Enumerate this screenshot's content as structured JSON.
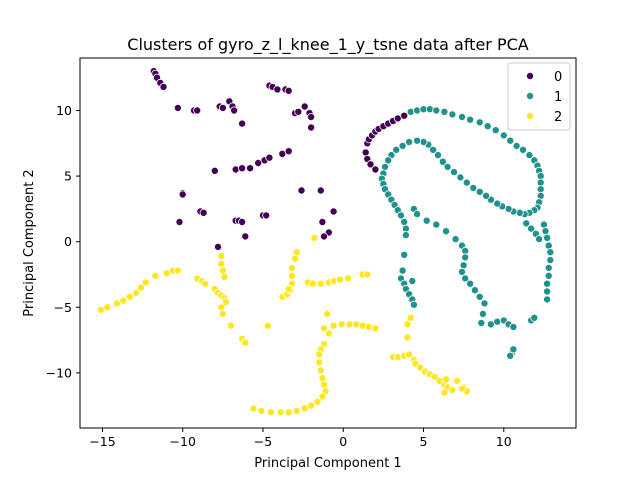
{
  "chart_data": {
    "type": "scatter",
    "title": "Clusters of gyro_z_l_knee_1_y_tsne data after PCA",
    "xlabel": "Principal Component 1",
    "ylabel": "Principal Component 2",
    "xlim": [
      -16.4,
      14.5
    ],
    "ylim": [
      -14.2,
      14.0
    ],
    "xticks": [
      -15,
      -10,
      -5,
      0,
      5,
      10
    ],
    "yticks": [
      -10,
      -5,
      0,
      5,
      10
    ],
    "legend_position": "top-right",
    "grid": false,
    "series": [
      {
        "name": "0",
        "color": "#440154",
        "points": [
          [
            -11.8,
            13.0
          ],
          [
            -11.7,
            12.8
          ],
          [
            -11.6,
            12.5
          ],
          [
            -11.4,
            12.1
          ],
          [
            -11.2,
            11.8
          ],
          [
            -10.3,
            10.2
          ],
          [
            -9.3,
            10.0
          ],
          [
            -9.1,
            10.0
          ],
          [
            -7.7,
            10.3
          ],
          [
            -7.5,
            10.2
          ],
          [
            -7.1,
            10.7
          ],
          [
            -6.9,
            10.3
          ],
          [
            -6.8,
            10.0
          ],
          [
            -6.3,
            9.0
          ],
          [
            -4.6,
            11.9
          ],
          [
            -4.4,
            11.8
          ],
          [
            -4.1,
            11.6
          ],
          [
            -3.6,
            11.6
          ],
          [
            -3.4,
            11.5
          ],
          [
            -3.0,
            9.8
          ],
          [
            -2.8,
            9.9
          ],
          [
            -2.4,
            10.3
          ],
          [
            -2.1,
            9.8
          ],
          [
            -2.0,
            9.5
          ],
          [
            -2.0,
            8.7
          ],
          [
            -8.0,
            5.4
          ],
          [
            -6.7,
            5.5
          ],
          [
            -6.3,
            5.6
          ],
          [
            -5.8,
            5.6
          ],
          [
            -5.3,
            6.0
          ],
          [
            -4.9,
            6.2
          ],
          [
            -4.6,
            6.4
          ],
          [
            -3.8,
            6.7
          ],
          [
            -3.4,
            6.9
          ],
          [
            -2.6,
            3.9
          ],
          [
            -1.4,
            3.9
          ],
          [
            -10.0,
            3.7
          ],
          [
            -10.0,
            3.6
          ],
          [
            -8.9,
            2.3
          ],
          [
            -8.7,
            2.2
          ],
          [
            -6.7,
            1.6
          ],
          [
            -6.5,
            1.6
          ],
          [
            -6.3,
            1.5
          ],
          [
            -5.0,
            2.0
          ],
          [
            -4.8,
            2.0
          ],
          [
            -10.2,
            1.5
          ],
          [
            -1.3,
            1.5
          ],
          [
            -0.6,
            2.3
          ],
          [
            -7.8,
            -0.4
          ],
          [
            -6.1,
            0.4
          ],
          [
            -0.9,
            0.7
          ],
          [
            -1.2,
            0.4
          ],
          [
            1.4,
            6.8
          ],
          [
            1.5,
            7.5
          ],
          [
            1.6,
            7.8
          ],
          [
            1.8,
            8.1
          ],
          [
            2.0,
            8.4
          ],
          [
            2.2,
            8.6
          ],
          [
            2.5,
            8.8
          ],
          [
            2.8,
            9.0
          ],
          [
            3.1,
            9.2
          ],
          [
            3.4,
            9.4
          ],
          [
            3.8,
            9.6
          ],
          [
            1.5,
            6.3
          ],
          [
            1.7,
            5.9
          ],
          [
            2.0,
            5.5
          ]
        ]
      },
      {
        "name": "1",
        "color": "#21918c",
        "points": [
          [
            4.2,
            9.9
          ],
          [
            4.6,
            10.0
          ],
          [
            5.0,
            10.1
          ],
          [
            5.4,
            10.1
          ],
          [
            5.8,
            10.0
          ],
          [
            6.3,
            9.9
          ],
          [
            6.8,
            9.7
          ],
          [
            7.4,
            9.5
          ],
          [
            7.9,
            9.3
          ],
          [
            8.5,
            9.1
          ],
          [
            9.0,
            8.8
          ],
          [
            9.5,
            8.5
          ],
          [
            10.0,
            8.1
          ],
          [
            10.4,
            7.7
          ],
          [
            10.8,
            7.3
          ],
          [
            11.2,
            7.0
          ],
          [
            11.6,
            6.6
          ],
          [
            11.9,
            6.2
          ],
          [
            12.1,
            5.8
          ],
          [
            12.2,
            5.4
          ],
          [
            12.3,
            5.0
          ],
          [
            12.3,
            4.5
          ],
          [
            12.3,
            4.0
          ],
          [
            12.3,
            3.5
          ],
          [
            12.2,
            3.0
          ],
          [
            12.1,
            2.6
          ],
          [
            11.9,
            2.4
          ],
          [
            11.6,
            2.2
          ],
          [
            11.3,
            2.1
          ],
          [
            11.0,
            2.2
          ],
          [
            10.6,
            2.3
          ],
          [
            10.3,
            2.5
          ],
          [
            9.9,
            2.7
          ],
          [
            9.6,
            2.9
          ],
          [
            9.2,
            3.2
          ],
          [
            8.9,
            3.5
          ],
          [
            8.5,
            3.8
          ],
          [
            8.1,
            4.1
          ],
          [
            7.7,
            4.5
          ],
          [
            7.3,
            4.9
          ],
          [
            6.9,
            5.3
          ],
          [
            6.5,
            5.7
          ],
          [
            6.2,
            6.1
          ],
          [
            5.9,
            6.6
          ],
          [
            5.6,
            7.0
          ],
          [
            5.3,
            7.4
          ],
          [
            5.0,
            7.6
          ],
          [
            4.6,
            7.7
          ],
          [
            4.1,
            7.6
          ],
          [
            3.7,
            7.3
          ],
          [
            3.3,
            7.0
          ],
          [
            3.0,
            6.6
          ],
          [
            2.8,
            6.2
          ],
          [
            2.6,
            5.7
          ],
          [
            2.5,
            5.2
          ],
          [
            2.4,
            4.8
          ],
          [
            2.5,
            4.4
          ],
          [
            2.6,
            4.0
          ],
          [
            2.8,
            3.6
          ],
          [
            3.0,
            3.2
          ],
          [
            3.2,
            2.8
          ],
          [
            3.4,
            2.4
          ],
          [
            3.6,
            2.0
          ],
          [
            3.8,
            1.5
          ],
          [
            3.9,
            1.0
          ],
          [
            3.9,
            0.5
          ],
          [
            3.8,
            -1.0
          ],
          [
            3.7,
            -2.2
          ],
          [
            3.6,
            -2.8
          ],
          [
            3.8,
            -3.2
          ],
          [
            3.9,
            -3.6
          ],
          [
            4.1,
            -4.0
          ],
          [
            4.3,
            -4.4
          ],
          [
            4.4,
            -4.8
          ],
          [
            4.3,
            -3.0
          ],
          [
            4.4,
            2.5
          ],
          [
            4.6,
            2.1
          ],
          [
            5.2,
            1.6
          ],
          [
            5.8,
            1.3
          ],
          [
            6.4,
            0.8
          ],
          [
            7.0,
            0.2
          ],
          [
            7.4,
            -0.3
          ],
          [
            7.6,
            -0.7
          ],
          [
            7.6,
            -1.2
          ],
          [
            7.5,
            -1.8
          ],
          [
            7.4,
            -2.3
          ],
          [
            7.6,
            -2.8
          ],
          [
            7.9,
            -3.2
          ],
          [
            8.2,
            -3.7
          ],
          [
            8.5,
            -4.2
          ],
          [
            8.8,
            -4.7
          ],
          [
            8.7,
            -5.5
          ],
          [
            8.6,
            -6.2
          ],
          [
            9.2,
            -6.3
          ],
          [
            9.6,
            -6.1
          ],
          [
            10.0,
            -6.0
          ],
          [
            10.3,
            -6.3
          ],
          [
            10.6,
            -6.5
          ],
          [
            11.7,
            -6.0
          ],
          [
            11.9,
            -5.8
          ],
          [
            12.5,
            1.3
          ],
          [
            12.6,
            0.8
          ],
          [
            12.7,
            0.3
          ],
          [
            12.8,
            -0.3
          ],
          [
            12.9,
            -0.8
          ],
          [
            12.9,
            -1.4
          ],
          [
            12.8,
            -2.0
          ],
          [
            12.8,
            -2.6
          ],
          [
            12.7,
            -3.2
          ],
          [
            12.7,
            -3.8
          ],
          [
            12.7,
            -4.4
          ],
          [
            11.4,
            1.4
          ],
          [
            11.7,
            1.0
          ],
          [
            12.0,
            0.6
          ],
          [
            12.2,
            0.2
          ],
          [
            10.5,
            -8.5
          ],
          [
            10.6,
            -8.2
          ],
          [
            10.4,
            -8.7
          ]
        ]
      },
      {
        "name": "2",
        "color": "#fde725",
        "points": [
          [
            -15.1,
            -5.2
          ],
          [
            -14.7,
            -5.0
          ],
          [
            -14.1,
            -4.7
          ],
          [
            -13.7,
            -4.5
          ],
          [
            -13.3,
            -4.2
          ],
          [
            -12.9,
            -3.9
          ],
          [
            -12.6,
            -3.5
          ],
          [
            -12.3,
            -3.1
          ],
          [
            -11.7,
            -2.6
          ],
          [
            -11.0,
            -2.4
          ],
          [
            -10.6,
            -2.2
          ],
          [
            -10.3,
            -2.2
          ],
          [
            -9.1,
            -2.8
          ],
          [
            -8.8,
            -3.0
          ],
          [
            -8.6,
            -3.2
          ],
          [
            -8.0,
            -3.6
          ],
          [
            -7.8,
            -3.9
          ],
          [
            -7.6,
            -4.1
          ],
          [
            -7.4,
            -4.3
          ],
          [
            -7.3,
            -4.6
          ],
          [
            -7.6,
            -1.1
          ],
          [
            -7.6,
            -1.7
          ],
          [
            -7.5,
            -2.2
          ],
          [
            -7.4,
            -2.7
          ],
          [
            -7.6,
            -5.0
          ],
          [
            -7.5,
            -5.5
          ],
          [
            -7.0,
            -6.4
          ],
          [
            -6.3,
            -7.4
          ],
          [
            -6.1,
            -7.7
          ],
          [
            -4.7,
            -6.4
          ],
          [
            -3.8,
            -4.2
          ],
          [
            -3.5,
            -4.0
          ],
          [
            -3.3,
            -3.7
          ],
          [
            -3.2,
            -3.2
          ],
          [
            -3.2,
            -2.6
          ],
          [
            -3.2,
            -2.0
          ],
          [
            -3.0,
            -1.3
          ],
          [
            -2.9,
            -0.8
          ],
          [
            -3.4,
            -3.6
          ],
          [
            -2.2,
            -3.1
          ],
          [
            -1.9,
            -3.2
          ],
          [
            -1.4,
            -3.2
          ],
          [
            -0.9,
            -3.1
          ],
          [
            -0.6,
            -3.0
          ],
          [
            -0.2,
            -2.9
          ],
          [
            0.3,
            -2.8
          ],
          [
            1.2,
            -2.5
          ],
          [
            1.5,
            -2.5
          ],
          [
            -1.8,
            0.3
          ],
          [
            -1.2,
            -6.6
          ],
          [
            -0.9,
            -7.0
          ],
          [
            -1.0,
            -5.5
          ],
          [
            -1.2,
            -7.8
          ],
          [
            -1.4,
            -8.2
          ],
          [
            -1.5,
            -8.6
          ],
          [
            -1.5,
            -9.2
          ],
          [
            -1.4,
            -9.8
          ],
          [
            -1.3,
            -10.4
          ],
          [
            -1.2,
            -10.9
          ],
          [
            -1.1,
            -11.4
          ],
          [
            -1.3,
            -11.8
          ],
          [
            -1.6,
            -12.2
          ],
          [
            -2.0,
            -12.5
          ],
          [
            -2.4,
            -12.7
          ],
          [
            -2.9,
            -12.9
          ],
          [
            -3.4,
            -13.0
          ],
          [
            -3.9,
            -13.0
          ],
          [
            -4.5,
            -13.0
          ],
          [
            -5.1,
            -12.9
          ],
          [
            -5.6,
            -12.7
          ],
          [
            -0.6,
            -6.4
          ],
          [
            -0.1,
            -6.3
          ],
          [
            0.4,
            -6.3
          ],
          [
            0.8,
            -6.3
          ],
          [
            1.2,
            -6.4
          ],
          [
            1.6,
            -6.5
          ],
          [
            2.0,
            -6.6
          ],
          [
            3.1,
            -8.8
          ],
          [
            3.4,
            -8.8
          ],
          [
            3.8,
            -8.7
          ],
          [
            4.1,
            -8.6
          ],
          [
            4.0,
            -6.3
          ],
          [
            4.0,
            -7.3
          ],
          [
            4.2,
            -5.8
          ],
          [
            4.4,
            -9.0
          ],
          [
            4.5,
            -9.3
          ],
          [
            4.8,
            -9.6
          ],
          [
            5.1,
            -9.9
          ],
          [
            5.4,
            -10.1
          ],
          [
            5.7,
            -10.3
          ],
          [
            6.0,
            -10.6
          ],
          [
            6.3,
            -10.9
          ],
          [
            6.5,
            -11.1
          ],
          [
            6.8,
            -11.3
          ],
          [
            6.4,
            -10.5
          ],
          [
            7.1,
            -10.6
          ],
          [
            7.5,
            -11.1
          ],
          [
            7.7,
            -11.4
          ],
          [
            7.4,
            -11.2
          ],
          [
            6.3,
            -11.5
          ]
        ]
      }
    ]
  }
}
